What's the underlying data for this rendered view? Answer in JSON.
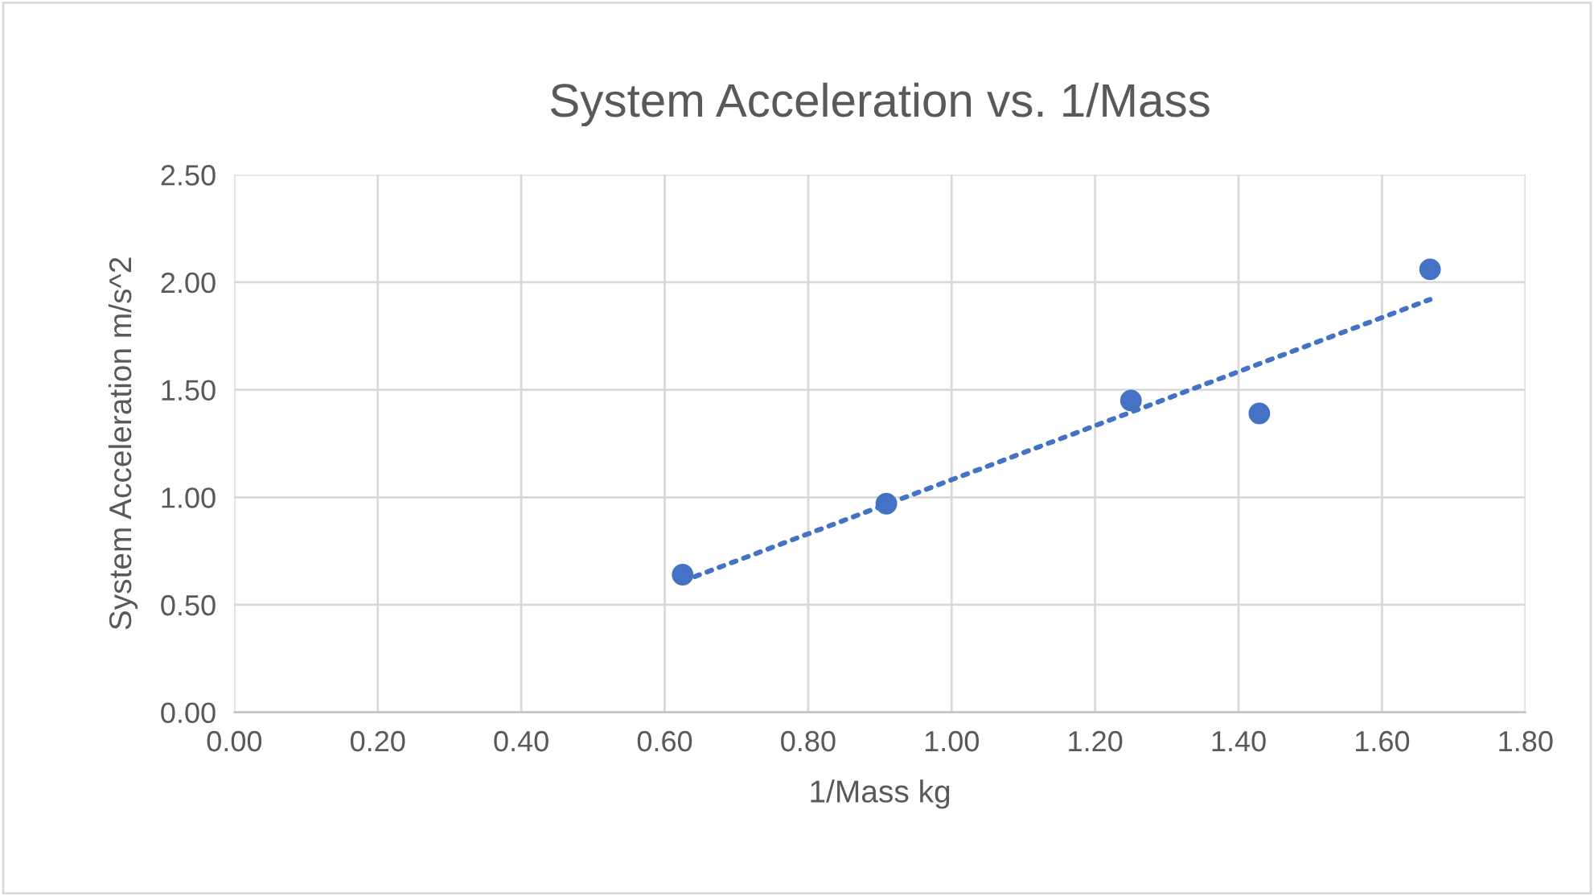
{
  "chart_data": {
    "type": "scatter",
    "title": "System Acceleration vs. 1/Mass",
    "xlabel": "1/Mass kg",
    "ylabel": "System Acceleration m/s^2",
    "series": [
      {
        "color": "#4472c4",
        "x": [
          0.625,
          0.909,
          1.25,
          1.429,
          1.667
        ],
        "values": [
          0.64,
          0.97,
          1.45,
          1.39,
          2.06
        ],
        "marker": "circle"
      },
      {
        "type": "line",
        "color": "#4472c4",
        "x": [
          0.625,
          1.667
        ],
        "values": [
          0.61,
          1.92
        ],
        "line_style": "dotted",
        "marker": "none"
      }
    ],
    "xlim": [
      0,
      1.8
    ],
    "xticks": [
      {
        "value": 0,
        "label": "0.00"
      },
      {
        "value": 0.2,
        "label": "0.20"
      },
      {
        "value": 0.4,
        "label": "0.40"
      },
      {
        "value": 0.6,
        "label": "0.60"
      },
      {
        "value": 0.8,
        "label": "0.80"
      },
      {
        "value": 1.0,
        "label": "1.00"
      },
      {
        "value": 1.2,
        "label": "1.20"
      },
      {
        "value": 1.4,
        "label": "1.40"
      },
      {
        "value": 1.6,
        "label": "1.60"
      },
      {
        "value": 1.8,
        "label": "1.80"
      }
    ],
    "ylim": [
      0,
      2.5
    ],
    "yticks": [
      {
        "value": 0,
        "label": "0.00"
      },
      {
        "value": 0.5,
        "label": "0.50"
      },
      {
        "value": 1.0,
        "label": "1.00"
      },
      {
        "value": 1.5,
        "label": "1.50"
      },
      {
        "value": 2.0,
        "label": "2.00"
      },
      {
        "value": 2.5,
        "label": "2.50"
      }
    ],
    "grid": true
  }
}
